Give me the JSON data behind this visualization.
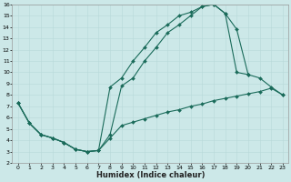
{
  "xlabel": "Humidex (Indice chaleur)",
  "bg_color": "#cce8e8",
  "grid_color": "#b8d8d8",
  "line_color": "#1a6b5a",
  "xlim": [
    -0.5,
    23.5
  ],
  "ylim": [
    2,
    16
  ],
  "xticks": [
    0,
    1,
    2,
    3,
    4,
    5,
    6,
    7,
    8,
    9,
    10,
    11,
    12,
    13,
    14,
    15,
    16,
    17,
    18,
    19,
    20,
    21,
    22,
    23
  ],
  "yticks": [
    2,
    3,
    4,
    5,
    6,
    7,
    8,
    9,
    10,
    11,
    12,
    13,
    14,
    15,
    16
  ],
  "line1_x": [
    0,
    1,
    2,
    3,
    4,
    5,
    6,
    7,
    8,
    9,
    10,
    11,
    12,
    13,
    14,
    15,
    16,
    17,
    18,
    19,
    20
  ],
  "line1_y": [
    7.3,
    5.5,
    4.5,
    4.2,
    3.8,
    3.2,
    3.0,
    3.1,
    8.7,
    9.5,
    11.0,
    12.2,
    13.5,
    14.2,
    15.0,
    15.3,
    15.8,
    16.0,
    15.2,
    10.0,
    9.8
  ],
  "line2_x": [
    0,
    1,
    2,
    3,
    4,
    5,
    6,
    7,
    8,
    9,
    10,
    11,
    12,
    13,
    14,
    15,
    16,
    17,
    18,
    19,
    20,
    21,
    22,
    23
  ],
  "line2_y": [
    7.3,
    5.5,
    4.5,
    4.2,
    3.8,
    3.2,
    3.0,
    3.1,
    4.5,
    8.8,
    9.5,
    11.0,
    12.2,
    13.5,
    14.2,
    15.0,
    15.8,
    16.0,
    15.2,
    13.8,
    9.8,
    9.5,
    8.7,
    8.0
  ],
  "line3_x": [
    0,
    1,
    2,
    3,
    4,
    5,
    6,
    7,
    8,
    9,
    10,
    11,
    12,
    13,
    14,
    15,
    16,
    17,
    18,
    19,
    20,
    21,
    22,
    23
  ],
  "line3_y": [
    7.3,
    5.5,
    4.5,
    4.2,
    3.8,
    3.2,
    3.0,
    3.1,
    4.2,
    5.3,
    5.6,
    5.9,
    6.2,
    6.5,
    6.7,
    7.0,
    7.2,
    7.5,
    7.7,
    7.9,
    8.1,
    8.3,
    8.6,
    8.0
  ],
  "figsize": [
    3.2,
    2.0
  ],
  "dpi": 100,
  "linewidth": 0.8,
  "markersize": 2.0,
  "tick_fontsize": 4.5,
  "label_fontsize": 6.0
}
